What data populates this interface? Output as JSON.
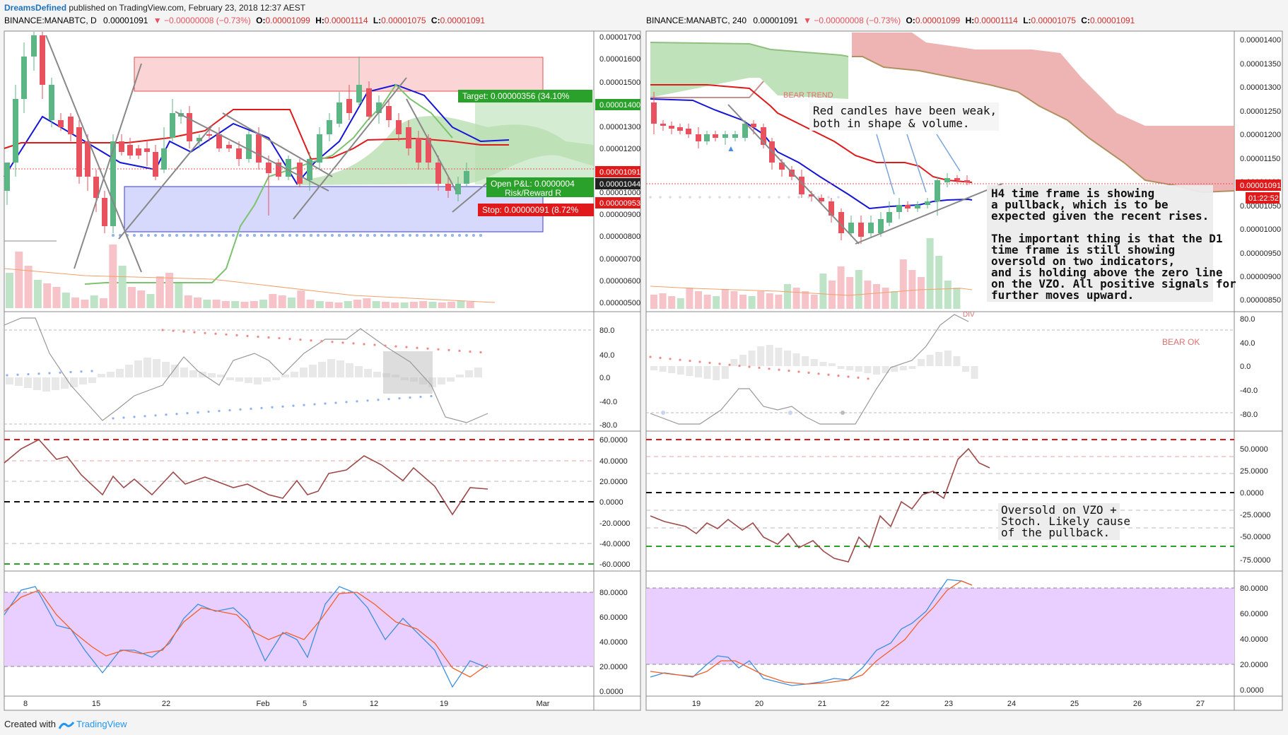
{
  "header": {
    "author": "DreamsDefined",
    "published_text": "published on TradingView.com, February 23, 2018 12:37 AEST"
  },
  "footer": {
    "created_with": "Created with",
    "brand": "TradingView"
  },
  "colors": {
    "bull": "#5bb585",
    "bear": "#e8525e",
    "fast_ma": "#1515d8",
    "slow_ma": "#e01a1a",
    "cloud_green": "#a3d49b",
    "cloud_red": "#eba7a7",
    "stoch_k": "#3a8fe0",
    "stoch_d": "#f0602a",
    "vzo": "#9e4a4a",
    "stoch_band": "#e9cfff"
  },
  "left_chart": {
    "symbol_line": {
      "symbol": "BINANCE:MANABTC, D",
      "last": "0.00001091",
      "change": "▼ −0.00000008 (−0.73%)",
      "o_label": "O:",
      "o_val": "0.00001099",
      "h_label": "H:",
      "h_val": "0.00001114",
      "l_label": "L:",
      "l_val": "0.00001075",
      "c_label": "C:",
      "c_val": "0.00001091"
    },
    "price_axis": [
      "0.00001700",
      "0.00001600",
      "0.00001500",
      "0.00001300",
      "0.00001200",
      "0.00001000",
      "0.00000900",
      "0.00000800",
      "0.00000700",
      "0.00000600",
      "0.00000500"
    ],
    "price_tags": {
      "target": "0.00001400",
      "last": "0.00001091",
      "entry": "0.00001044",
      "stop": "0.00000953"
    },
    "position": {
      "target_label": "Target: 0.00000356 (34.10%",
      "pnl_label": "Open P&L: 0.0000004",
      "rr_label": "Risk/Reward R",
      "stop_label": "Stop: 0.00000091 (8.72%"
    },
    "osc1_axis": [
      "80.0",
      "40.0",
      "0.0",
      "-40.0",
      "-80.0"
    ],
    "vzo_axis": [
      "60.0000",
      "40.0000",
      "20.0000",
      "0.0000",
      "-20.0000",
      "-40.0000",
      "-60.0000"
    ],
    "stoch_axis": [
      "80.0000",
      "60.0000",
      "40.0000",
      "20.0000",
      "0.0000"
    ],
    "time_axis": [
      "8",
      "15",
      "22",
      "Feb",
      "5",
      "12",
      "19",
      "Mar"
    ]
  },
  "right_chart": {
    "symbol_line": {
      "symbol": "BINANCE:MANABTC, 240",
      "last": "0.00001091",
      "change": "▼ −0.00000008 (−0.73%)",
      "o_label": "O:",
      "o_val": "0.00001099",
      "h_label": "H:",
      "h_val": "0.00001114",
      "l_label": "L:",
      "l_val": "0.00001075",
      "c_label": "C:",
      "c_val": "0.00001091"
    },
    "price_axis": [
      "0.00001400",
      "0.00001350",
      "0.00001300",
      "0.00001250",
      "0.00001200",
      "0.00001150",
      "0.00001100",
      "0.00001050",
      "0.00001000",
      "0.00000950",
      "0.00000900",
      "0.00000850"
    ],
    "price_tags": {
      "last": "0.00001091",
      "countdown": "01:22:52"
    },
    "labels": {
      "bear_trend": "BEAR TREND",
      "bear_ok": "BEAR OK",
      "div": "DIV"
    },
    "annotations": {
      "red_candles": [
        "Red candles have been weak,",
        "both in shape & volume."
      ],
      "h4_text": [
        "H4 time frame is showing",
        "a pullback, which is to be",
        "expected given the recent rises.",
        "",
        "The important thing is that the D1",
        "time frame is still showing",
        "oversold on two indicators,",
        "and is holding above the zero line",
        "on the VZO. All positive signals for",
        "further moves upward."
      ],
      "oversold": [
        "Oversold on VZO +",
        "Stoch. Likely cause",
        "of the pullback."
      ]
    },
    "osc1_axis": [
      "80.0",
      "40.0",
      "0.0",
      "-40.0",
      "-80.0"
    ],
    "vzo_axis": [
      "50.0000",
      "25.0000",
      "0.0000",
      "-25.0000",
      "-50.0000",
      "-75.0000"
    ],
    "stoch_axis": [
      "80.0000",
      "60.0000",
      "40.0000",
      "20.0000",
      "0.0000"
    ],
    "time_axis": [
      "19",
      "20",
      "21",
      "22",
      "23",
      "24",
      "25",
      "26",
      "27"
    ]
  },
  "chart_data": [
    {
      "type": "line",
      "title": "BINANCE:MANABTC, D",
      "x": [
        "Jan 8",
        "Jan 15",
        "Jan 22",
        "Feb 1",
        "Feb 5",
        "Feb 12",
        "Feb 19"
      ],
      "series": [
        {
          "name": "Close",
          "values": [
            1.65e-05,
            1.12e-05,
            1.18e-05,
            1.06e-05,
            1.18e-05,
            1.43e-05,
            1.09e-05
          ]
        }
      ],
      "ylim": [
        4.8e-06,
        1.72e-05
      ]
    },
    {
      "type": "line",
      "title": "BINANCE:MANABTC, 240",
      "x": [
        "19",
        "20",
        "21",
        "22",
        "23"
      ],
      "series": [
        {
          "name": "Close",
          "values": [
            1.21e-05,
            1.14e-05,
            9.8e-06,
            1.04e-05,
            1.09e-05
          ]
        }
      ],
      "ylim": [
        8.2e-06,
        1.41e-05
      ]
    }
  ]
}
